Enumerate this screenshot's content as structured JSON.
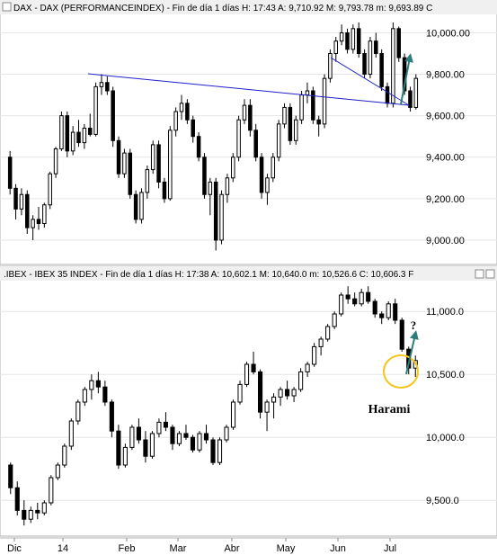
{
  "chart_data": [
    {
      "type": "candlestick",
      "header": {
        "symbol": "DAX",
        "text": "DAX - DAX (PERFORMANCEINDEX) - Fin de día 1 días  H: 17:43  A: 9,710.92  M: 9,793.78  m: 9,693.89  C"
      },
      "y_ticks": [
        "10,000.00",
        "9,800.00",
        "9,600.00",
        "9,400.00",
        "9,200.00",
        "9,000.00"
      ],
      "ylim": [
        8900,
        10080
      ],
      "series": [
        {
          "values": [
            [
              9400,
              9430,
              9220,
              9250
            ],
            [
              9250,
              9270,
              9100,
              9150
            ],
            [
              9150,
              9250,
              9120,
              9220
            ],
            [
              9220,
              9240,
              9030,
              9060
            ],
            [
              9060,
              9120,
              9000,
              9100
            ],
            [
              9100,
              9160,
              9050,
              9080
            ],
            [
              9080,
              9180,
              9060,
              9170
            ],
            [
              9170,
              9330,
              9150,
              9320
            ],
            [
              9320,
              9450,
              9300,
              9440
            ],
            [
              9440,
              9620,
              9430,
              9600
            ],
            [
              9600,
              9620,
              9400,
              9430
            ],
            [
              9430,
              9550,
              9410,
              9520
            ],
            [
              9520,
              9580,
              9450,
              9470
            ],
            [
              9470,
              9560,
              9440,
              9540
            ],
            [
              9540,
              9610,
              9500,
              9510
            ],
            [
              9510,
              9760,
              9500,
              9740
            ],
            [
              9740,
              9800,
              9700,
              9760
            ],
            [
              9760,
              9790,
              9700,
              9720
            ],
            [
              9720,
              9740,
              9450,
              9480
            ],
            [
              9480,
              9500,
              9300,
              9320
            ],
            [
              9320,
              9440,
              9300,
              9420
            ],
            [
              9420,
              9440,
              9200,
              9220
            ],
            [
              9220,
              9240,
              9080,
              9100
            ],
            [
              9100,
              9250,
              9080,
              9230
            ],
            [
              9230,
              9360,
              9200,
              9340
            ],
            [
              9340,
              9480,
              9320,
              9460
            ],
            [
              9460,
              9480,
              9250,
              9280
            ],
            [
              9280,
              9300,
              9180,
              9200
            ],
            [
              9200,
              9550,
              9190,
              9530
            ],
            [
              9530,
              9640,
              9500,
              9620
            ],
            [
              9620,
              9700,
              9580,
              9660
            ],
            [
              9660,
              9680,
              9560,
              9580
            ],
            [
              9580,
              9600,
              9470,
              9500
            ],
            [
              9500,
              9520,
              9380,
              9400
            ],
            [
              9400,
              9420,
              9200,
              9220
            ],
            [
              9220,
              9300,
              9120,
              9280
            ],
            [
              9280,
              9300,
              8950,
              9000
            ],
            [
              9000,
              9240,
              8980,
              9220
            ],
            [
              9220,
              9320,
              9180,
              9300
            ],
            [
              9300,
              9420,
              9280,
              9400
            ],
            [
              9400,
              9600,
              9380,
              9580
            ],
            [
              9580,
              9680,
              9560,
              9650
            ],
            [
              9650,
              9680,
              9500,
              9530
            ],
            [
              9530,
              9560,
              9380,
              9400
            ],
            [
              9400,
              9420,
              9200,
              9230
            ],
            [
              9230,
              9320,
              9170,
              9300
            ],
            [
              9300,
              9420,
              9280,
              9400
            ],
            [
              9400,
              9580,
              9380,
              9560
            ],
            [
              9560,
              9660,
              9540,
              9640
            ],
            [
              9640,
              9660,
              9460,
              9480
            ],
            [
              9480,
              9600,
              9460,
              9580
            ],
            [
              9580,
              9720,
              9560,
              9700
            ],
            [
              9700,
              9760,
              9660,
              9720
            ],
            [
              9720,
              9740,
              9560,
              9580
            ],
            [
              9580,
              9600,
              9500,
              9560
            ],
            [
              9560,
              9800,
              9540,
              9780
            ],
            [
              9780,
              9920,
              9760,
              9900
            ],
            [
              9900,
              9980,
              9860,
              9960
            ],
            [
              9960,
              10040,
              9940,
              10000
            ],
            [
              10000,
              10020,
              9900,
              9920
            ],
            [
              9920,
              10040,
              9900,
              10020
            ],
            [
              10020,
              10050,
              9880,
              9900
            ],
            [
              9900,
              9920,
              9780,
              9800
            ],
            [
              9800,
              9980,
              9780,
              9960
            ],
            [
              9960,
              10000,
              9880,
              9900
            ],
            [
              9900,
              9920,
              9720,
              9740
            ],
            [
              9740,
              9760,
              9640,
              9660
            ],
            [
              9660,
              10050,
              9640,
              10020
            ],
            [
              10020,
              10030,
              9860,
              9880
            ],
            [
              9880,
              9900,
              9700,
              9720
            ],
            [
              9720,
              9740,
              9620,
              9640
            ],
            [
              9640,
              9800,
              9630,
              9780
            ]
          ]
        }
      ],
      "annotations": {
        "trendline_color": "#1f1fc8",
        "arrow_color": "#2e7d7d"
      }
    },
    {
      "type": "candlestick",
      "header": {
        "symbol": ".IBEX",
        "text": ".IBEX - IBEX 35 INDEX - Fin de día 1 días  H: 17:38  A: 10,602.1  M: 10,640.0  m: 10,526.6  C: 10,606.3  F"
      },
      "y_ticks": [
        "11,000.0",
        "10,500.0",
        "10,000.0",
        "9,500.0"
      ],
      "ylim": [
        9230,
        11230
      ],
      "x_ticks": [
        "Dic",
        "14",
        "Feb",
        "Mar",
        "Abr",
        "May",
        "Jun",
        "Jul"
      ],
      "series": [
        {
          "values": [
            [
              9780,
              9800,
              9550,
              9600
            ],
            [
              9600,
              9650,
              9380,
              9420
            ],
            [
              9420,
              9500,
              9300,
              9350
            ],
            [
              9350,
              9450,
              9320,
              9420
            ],
            [
              9420,
              9480,
              9350,
              9400
            ],
            [
              9400,
              9500,
              9380,
              9480
            ],
            [
              9480,
              9700,
              9460,
              9680
            ],
            [
              9680,
              9800,
              9660,
              9780
            ],
            [
              9780,
              9950,
              9760,
              9930
            ],
            [
              9930,
              10150,
              9900,
              10130
            ],
            [
              10130,
              10300,
              10100,
              10280
            ],
            [
              10280,
              10400,
              10250,
              10380
            ],
            [
              10380,
              10500,
              10300,
              10450
            ],
            [
              10450,
              10520,
              10350,
              10400
            ],
            [
              10400,
              10450,
              10250,
              10280
            ],
            [
              10280,
              10300,
              10000,
              10050
            ],
            [
              10050,
              10100,
              9750,
              9780
            ],
            [
              9780,
              9950,
              9760,
              9920
            ],
            [
              9920,
              10100,
              9900,
              10080
            ],
            [
              10080,
              10150,
              9950,
              9980
            ],
            [
              9980,
              10050,
              9800,
              9850
            ],
            [
              9850,
              10050,
              9830,
              10030
            ],
            [
              10030,
              10150,
              10000,
              10120
            ],
            [
              10120,
              10200,
              10050,
              10080
            ],
            [
              10080,
              10100,
              9900,
              9950
            ],
            [
              9950,
              10050,
              9930,
              10030
            ],
            [
              10030,
              10100,
              9980,
              10000
            ],
            [
              10000,
              10020,
              9880,
              9900
            ],
            [
              9900,
              10050,
              9880,
              10030
            ],
            [
              10030,
              10100,
              9950,
              9980
            ],
            [
              9980,
              10000,
              9780,
              9800
            ],
            [
              9800,
              10000,
              9780,
              9980
            ],
            [
              9980,
              10100,
              9960,
              10080
            ],
            [
              10080,
              10300,
              10060,
              10280
            ],
            [
              10280,
              10450,
              10260,
              10420
            ],
            [
              10420,
              10600,
              10400,
              10580
            ],
            [
              10580,
              10680,
              10500,
              10520
            ],
            [
              10520,
              10540,
              10150,
              10200
            ],
            [
              10200,
              10300,
              10050,
              10280
            ],
            [
              10280,
              10350,
              10150,
              10320
            ],
            [
              10320,
              10400,
              10250,
              10380
            ],
            [
              10380,
              10450,
              10300,
              10330
            ],
            [
              10330,
              10400,
              10280,
              10380
            ],
            [
              10380,
              10550,
              10360,
              10520
            ],
            [
              10520,
              10600,
              10480,
              10580
            ],
            [
              10580,
              10750,
              10560,
              10720
            ],
            [
              10720,
              10800,
              10650,
              10780
            ],
            [
              10780,
              10900,
              10760,
              10880
            ],
            [
              10880,
              11000,
              10860,
              10980
            ],
            [
              10980,
              11150,
              10960,
              11130
            ],
            [
              11130,
              11200,
              11060,
              11100
            ],
            [
              11100,
              11150,
              11040,
              11060
            ],
            [
              11060,
              11180,
              11040,
              11150
            ],
            [
              11150,
              11200,
              11060,
              11080
            ],
            [
              11080,
              11100,
              10950,
              10980
            ],
            [
              10980,
              11000,
              10900,
              10950
            ],
            [
              10950,
              11080,
              10930,
              11060
            ],
            [
              11060,
              11100,
              10900,
              10930
            ],
            [
              10930,
              10950,
              10680,
              10700
            ],
            [
              10700,
              10720,
              10500,
              10550
            ],
            [
              10550,
              10650,
              10480,
              10610
            ]
          ]
        }
      ],
      "annotations": {
        "label": "Harami",
        "question": "?",
        "circle_color": "#f5c518",
        "arrow_color": "#2e7d7d"
      }
    }
  ]
}
